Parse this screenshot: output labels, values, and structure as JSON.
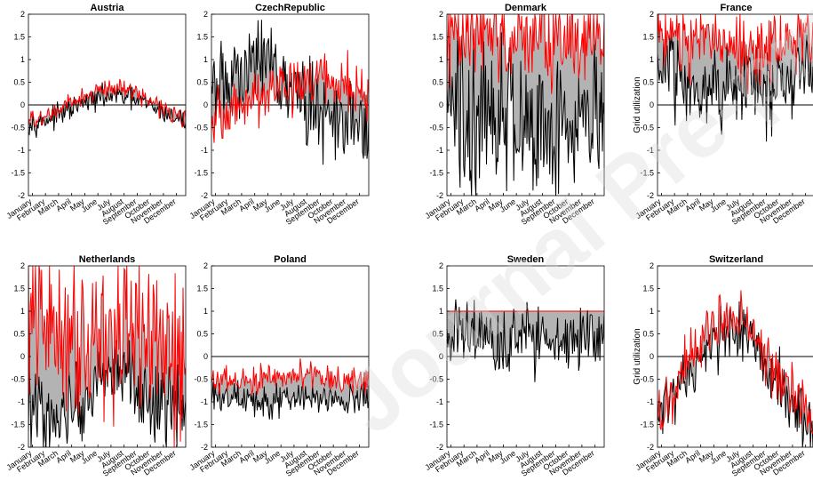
{
  "watermark": "Journal Pre-proof",
  "chart_data": [
    {
      "type": "line",
      "title": "Austria",
      "ylabel": "",
      "ylim": [
        -2,
        2
      ],
      "yticks": [
        "-2",
        "-1.5",
        "-1",
        "-0.5",
        "0",
        "0.5",
        "1",
        "1.5",
        "2"
      ],
      "months": [
        "January",
        "February",
        "March",
        "April",
        "May",
        "June",
        "July",
        "August",
        "September",
        "October",
        "November",
        "December"
      ],
      "zero_line": true,
      "colors": {
        "black": "#000000",
        "red": "#ff0000",
        "band": "#b3b3b3"
      },
      "series": [
        {
          "color": "black",
          "anchors": [
            -0.4,
            -0.35,
            -0.25,
            -0.1,
            0.05,
            0.15,
            0.2,
            0.15,
            0.05,
            -0.1,
            -0.25,
            -0.35
          ],
          "noise": 0.12
        },
        {
          "color": "red",
          "anchors": [
            -0.35,
            -0.3,
            -0.15,
            0.05,
            0.2,
            0.3,
            0.4,
            0.35,
            0.2,
            0.0,
            -0.15,
            -0.3
          ],
          "noise": 0.1
        }
      ]
    },
    {
      "type": "line",
      "title": "CzechRepublic",
      "ylabel": "",
      "ylim": [
        -2,
        2
      ],
      "yticks": [
        "-2",
        "-1.5",
        "-1",
        "-0.5",
        "0",
        "0.5",
        "1",
        "1.5",
        "2"
      ],
      "months": [
        "January",
        "February",
        "March",
        "April",
        "May",
        "June",
        "July",
        "August",
        "September",
        "October",
        "November",
        "December"
      ],
      "zero_line": true,
      "colors": {
        "black": "#000000",
        "red": "#ff0000",
        "band": "#b3b3b3"
      },
      "series": [
        {
          "color": "black",
          "anchors": [
            0.3,
            0.5,
            0.7,
            0.9,
            1.3,
            0.5,
            0.2,
            0.0,
            -0.2,
            -0.4,
            -0.6,
            -0.3
          ],
          "noise": 0.45
        },
        {
          "color": "red",
          "anchors": [
            -0.3,
            -0.2,
            0.0,
            0.1,
            0.3,
            0.4,
            0.5,
            0.6,
            0.5,
            0.6,
            0.3,
            0.1
          ],
          "noise": 0.3
        }
      ]
    },
    {
      "type": "line",
      "title": "Denmark",
      "ylabel": "",
      "ylim": [
        -2,
        2
      ],
      "yticks": [
        "-2",
        "-1.5",
        "-1",
        "-0.5",
        "0",
        "0.5",
        "1",
        "1.5",
        "2"
      ],
      "months": [
        "January",
        "February",
        "March",
        "April",
        "May",
        "June",
        "July",
        "August",
        "September",
        "October",
        "November",
        "December"
      ],
      "zero_line": false,
      "colors": {
        "black": "#000000",
        "red": "#ff0000",
        "band": "#b3b3b3"
      },
      "series": [
        {
          "color": "black",
          "anchors": [
            0.0,
            -0.3,
            -0.4,
            -0.2,
            0.0,
            -0.3,
            -0.5,
            -0.2,
            -0.3,
            -0.4,
            -0.5,
            -0.3
          ],
          "noise": 0.9
        },
        {
          "color": "red",
          "anchors": [
            1.3,
            1.4,
            1.5,
            1.5,
            1.4,
            1.5,
            1.6,
            1.5,
            1.4,
            1.5,
            1.5,
            1.4
          ],
          "noise": 0.55
        }
      ]
    },
    {
      "type": "line",
      "title": "France",
      "ylabel": "Grid utilization",
      "ylim": [
        -2,
        2
      ],
      "yticks": [
        "-2",
        "-1.5",
        "-1",
        "-0.5",
        "0",
        "0.5",
        "1",
        "1.5",
        "2"
      ],
      "months": [
        "January",
        "February",
        "March",
        "April",
        "May",
        "June",
        "July",
        "August",
        "September",
        "October",
        "November",
        "December"
      ],
      "zero_line": true,
      "colors": {
        "black": "#000000",
        "red": "#ff0000",
        "band": "#b3b3b3"
      },
      "series": [
        {
          "color": "black",
          "anchors": [
            0.9,
            0.8,
            0.6,
            0.5,
            0.4,
            0.5,
            0.4,
            0.3,
            0.4,
            0.5,
            0.6,
            0.7
          ],
          "noise": 0.45
        },
        {
          "color": "red",
          "anchors": [
            1.7,
            1.6,
            1.5,
            1.5,
            1.4,
            1.3,
            1.2,
            1.1,
            1.3,
            1.4,
            1.5,
            1.6
          ],
          "noise": 0.4
        }
      ]
    },
    {
      "type": "line",
      "title": "Netherlands",
      "ylabel": "",
      "ylim": [
        -2,
        2
      ],
      "yticks": [
        "-2",
        "-1.5",
        "-1",
        "-0.5",
        "0",
        "0.5",
        "1",
        "1.5",
        "2"
      ],
      "months": [
        "January",
        "February",
        "March",
        "April",
        "May",
        "June",
        "July",
        "August",
        "September",
        "October",
        "November",
        "December"
      ],
      "zero_line": false,
      "colors": {
        "black": "#000000",
        "red": "#ff0000",
        "band": "#b3b3b3"
      },
      "series": [
        {
          "color": "black",
          "anchors": [
            -1.0,
            -1.2,
            -1.3,
            -1.2,
            -1.0,
            -0.6,
            -0.2,
            -0.4,
            -0.8,
            -1.1,
            -1.2,
            -1.3
          ],
          "noise": 0.45
        },
        {
          "color": "red",
          "anchors": [
            0.9,
            0.7,
            0.6,
            0.7,
            0.5,
            0.6,
            0.4,
            0.3,
            0.5,
            0.4,
            -0.2,
            0.3
          ],
          "noise": 0.9
        }
      ]
    },
    {
      "type": "line",
      "title": "Poland",
      "ylabel": "",
      "ylim": [
        -2,
        2
      ],
      "yticks": [
        "-2",
        "-1.5",
        "-1",
        "-0.5",
        "0",
        "0.5",
        "1",
        "1.5",
        "2"
      ],
      "months": [
        "January",
        "February",
        "March",
        "April",
        "May",
        "June",
        "July",
        "August",
        "September",
        "October",
        "November",
        "December"
      ],
      "zero_line": true,
      "colors": {
        "black": "#000000",
        "red": "#ff0000",
        "band": "#b3b3b3"
      },
      "series": [
        {
          "color": "black",
          "anchors": [
            -0.8,
            -0.85,
            -0.95,
            -1.05,
            -1.1,
            -0.95,
            -0.85,
            -0.9,
            -0.95,
            -1.0,
            -0.9,
            -0.8
          ],
          "noise": 0.18
        },
        {
          "color": "red",
          "anchors": [
            -0.5,
            -0.55,
            -0.6,
            -0.5,
            -0.4,
            -0.45,
            -0.35,
            -0.4,
            -0.45,
            -0.6,
            -0.55,
            -0.5
          ],
          "noise": 0.15
        }
      ]
    },
    {
      "type": "line",
      "title": "Sweden",
      "ylabel": "",
      "ylim": [
        -2,
        2
      ],
      "yticks": [
        "-2",
        "-1.5",
        "-1",
        "-0.5",
        "0",
        "0.5",
        "1",
        "1.5",
        "2"
      ],
      "months": [
        "January",
        "February",
        "March",
        "April",
        "May",
        "June",
        "July",
        "August",
        "September",
        "October",
        "November",
        "December"
      ],
      "zero_line": true,
      "colors": {
        "black": "#000000",
        "red": "#ff0000",
        "band": "#b3b3b3"
      },
      "series": [
        {
          "color": "black",
          "anchors": [
            0.3,
            0.5,
            0.6,
            0.3,
            0.2,
            0.3,
            0.4,
            0.5,
            0.3,
            0.4,
            0.5,
            0.4
          ],
          "noise": 0.4
        },
        {
          "color": "red",
          "anchors": [
            1.0,
            1.0,
            1.0,
            1.0,
            1.0,
            1.0,
            1.0,
            1.0,
            1.0,
            1.0,
            1.0,
            1.0
          ],
          "noise": 0.0
        }
      ]
    },
    {
      "type": "line",
      "title": "Switzerland",
      "ylabel": "Grid utilization",
      "ylim": [
        -2,
        2
      ],
      "yticks": [
        "-2",
        "-1.5",
        "-1",
        "-0.5",
        "0",
        "0.5",
        "1",
        "1.5",
        "2"
      ],
      "months": [
        "January",
        "February",
        "March",
        "April",
        "May",
        "June",
        "July",
        "August",
        "September",
        "October",
        "November",
        "December"
      ],
      "zero_line": true,
      "colors": {
        "black": "#000000",
        "red": "#ff0000",
        "band": "#b3b3b3"
      },
      "series": [
        {
          "color": "black",
          "anchors": [
            -1.3,
            -1.0,
            -0.5,
            -0.1,
            0.4,
            0.5,
            0.4,
            0.1,
            -0.4,
            -0.9,
            -1.4,
            -1.7
          ],
          "noise": 0.35
        },
        {
          "color": "red",
          "anchors": [
            -1.3,
            -0.9,
            -0.2,
            0.3,
            0.8,
            0.9,
            0.8,
            0.4,
            -0.1,
            -0.6,
            -1.1,
            -1.4
          ],
          "noise": 0.35
        }
      ]
    }
  ]
}
